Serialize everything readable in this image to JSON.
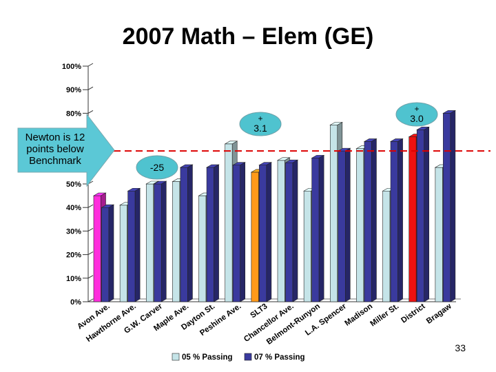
{
  "slide": {
    "title": "2007 Math – Elem (GE)",
    "page_number": "33"
  },
  "callout": {
    "lines": [
      "Newton is 12",
      "points below",
      "Benchmark"
    ],
    "fill": "#5bc8d6"
  },
  "annotations": [
    {
      "text": "+ 3.1",
      "near_category": "SLT3"
    },
    {
      "text": "-25",
      "near_category": "Maple Ave."
    },
    {
      "text": "+ 3.0",
      "near_category": "District"
    }
  ],
  "benchmark": {
    "value": 64,
    "color": "#dd0000"
  },
  "colors": {
    "series_05": "#c5e4e8",
    "series_07": "#3a3a9e",
    "highlight_avon": "#ff2ddc",
    "highlight_slt3": "#ff9a1a",
    "highlight_district": "#ee1111",
    "callout_fill": "#5bc8d6"
  },
  "chart_data": {
    "type": "bar",
    "title": "2007 Math – Elem (GE)",
    "categories": [
      "Avon Ave.",
      "Hawthorne Ave.",
      "G.W. Carver",
      "Maple Ave.",
      "Dayton St.",
      "Peshine Ave.",
      "SLT3",
      "Chancellor Ave.",
      "Belmont-Runyon",
      "L.A. Spencer",
      "Madison",
      "Miller St.",
      "District",
      "Bragaw"
    ],
    "series": [
      {
        "name": "05 % Passing",
        "values": [
          45,
          41,
          50,
          51,
          45,
          67,
          55,
          60,
          47,
          75,
          65,
          47,
          70,
          57
        ]
      },
      {
        "name": "07 % Passing",
        "values": [
          40,
          47,
          50,
          57,
          57,
          58,
          58,
          59,
          61,
          64,
          68,
          68,
          73,
          80
        ]
      }
    ],
    "highlights": [
      {
        "category": "Avon Ave.",
        "series": "05 % Passing",
        "color": "#ff2ddc"
      },
      {
        "category": "SLT3",
        "series": "05 % Passing",
        "color": "#ff9a1a"
      },
      {
        "category": "District",
        "series": "05 % Passing",
        "color": "#ee1111"
      }
    ],
    "yticks": [
      "0%",
      "10%",
      "20%",
      "30%",
      "40%",
      "50%",
      "60%",
      "70%",
      "80%",
      "90%",
      "100%"
    ],
    "ylim": [
      0,
      100
    ],
    "legend_position": "bottom",
    "grid": false
  }
}
